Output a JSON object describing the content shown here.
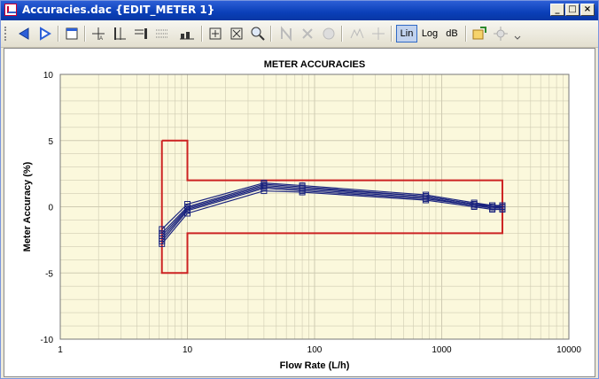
{
  "window": {
    "title": "Accuracies.dac {EDIT_METER 1}",
    "minimize_label": "_",
    "maximize_label": "□",
    "close_label": "×"
  },
  "toolbar": {
    "lin_label": "Lin",
    "log_label": "Log",
    "db_label": "dB",
    "active_scale": "Lin",
    "icons": [
      "prev-icon",
      "next-icon",
      "frame-icon",
      "cursor-marker-icon",
      "bar-marker-icon",
      "legend-icon",
      "grid-icon",
      "bar-chart-icon",
      "zoom-fit-icon",
      "zoom-area-icon",
      "zoom-icon",
      "marker-n-icon",
      "marker-delete-icon",
      "disabled-circle-icon",
      "peak-icon",
      "crosshair-icon",
      "export-icon",
      "settings-icon"
    ]
  },
  "colors": {
    "plot_background": "#fbf8dc",
    "limit_box": "#cc2222",
    "series": "#1a237e",
    "grid": "#cfcbb2",
    "titlebar": "#0a3fb8"
  },
  "chart_data": {
    "type": "line",
    "title": "METER ACCURACIES",
    "xlabel": "Flow Rate (L/h)",
    "ylabel": "Meter Accuracy (%)",
    "x_scale": "log",
    "xlim": [
      1,
      10000
    ],
    "ylim": [
      -10,
      10
    ],
    "x_ticks": [
      "1",
      "10",
      "100",
      "1000",
      "10000"
    ],
    "y_ticks": [
      "10",
      "5",
      "0",
      "-5",
      "-10"
    ],
    "grid": true,
    "legend": "none",
    "limit_box": [
      [
        6.3,
        5
      ],
      [
        10,
        5
      ],
      [
        10,
        2
      ],
      [
        3000,
        2
      ],
      [
        3000,
        -2
      ],
      [
        10,
        -2
      ],
      [
        10,
        -5
      ],
      [
        6.3,
        -5
      ],
      [
        6.3,
        5
      ]
    ],
    "x": [
      6.3,
      10,
      40,
      80,
      750,
      1800,
      2500,
      3000
    ],
    "series": [
      {
        "values": [
          -1.7,
          0.2,
          1.8,
          1.6,
          0.9,
          0.3,
          0.1,
          0.1
        ]
      },
      {
        "values": [
          -2.0,
          0.0,
          1.7,
          1.5,
          0.8,
          0.2,
          0.1,
          0.0
        ]
      },
      {
        "values": [
          -2.2,
          -0.1,
          1.6,
          1.4,
          0.8,
          0.2,
          0.0,
          0.0
        ]
      },
      {
        "values": [
          -2.4,
          -0.2,
          1.5,
          1.3,
          0.7,
          0.1,
          0.0,
          -0.1
        ]
      },
      {
        "values": [
          -2.6,
          -0.3,
          1.4,
          1.2,
          0.6,
          0.1,
          -0.1,
          -0.1
        ]
      },
      {
        "values": [
          -2.8,
          -0.5,
          1.2,
          1.1,
          0.5,
          0.0,
          -0.2,
          -0.2
        ]
      }
    ]
  }
}
